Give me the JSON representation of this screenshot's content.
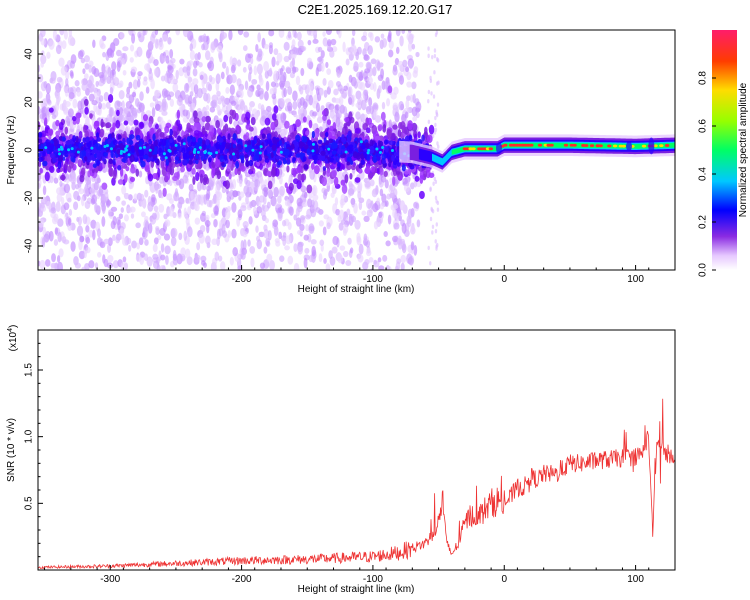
{
  "title": "C2E1.2025.169.12.20.G17",
  "chart_data": [
    {
      "type": "heatmap",
      "xlabel": "Height of straight line (km)",
      "ylabel": "Frequency (Hz)",
      "xlim": [
        -355,
        130
      ],
      "ylim": [
        -50,
        50
      ],
      "xticks": [
        "-300",
        "-200",
        "-100",
        "0",
        "100"
      ],
      "xtick_values": [
        -300,
        -200,
        -100,
        0,
        100
      ],
      "yticks": [
        "-40",
        "-20",
        "0",
        "20",
        "40"
      ],
      "ytick_values": [
        -40,
        -20,
        0,
        20,
        40
      ],
      "colorbar": {
        "label": "Normalized spectral amplitude",
        "range": [
          0,
          1
        ],
        "ticks": [
          "0.0",
          "0.2",
          "0.4",
          "0.6",
          "0.8"
        ],
        "tick_values": [
          0.0,
          0.2,
          0.4,
          0.6,
          0.8
        ]
      },
      "center_frequency_track": [
        {
          "h": -355,
          "f": 0
        },
        {
          "h": -100,
          "f": 0
        },
        {
          "h": -70,
          "f": -1
        },
        {
          "h": -55,
          "f": -3
        },
        {
          "h": -47,
          "f": -5
        },
        {
          "h": -40,
          "f": -1
        },
        {
          "h": -30,
          "f": 0.5
        },
        {
          "h": -5,
          "f": 0.5
        },
        {
          "h": 0,
          "f": 2
        },
        {
          "h": 50,
          "f": 2
        },
        {
          "h": 100,
          "f": 1.5
        },
        {
          "h": 130,
          "f": 2
        }
      ]
    },
    {
      "type": "line",
      "xlabel": "Height of straight line (km)",
      "ylabel": "SNR (10 * v/v)",
      "scale_note": "(x10",
      "scale_exp": "4",
      "xlim": [
        -355,
        130
      ],
      "ylim": [
        0,
        1.8
      ],
      "xticks": [
        "-300",
        "-200",
        "-100",
        "0",
        "100"
      ],
      "xtick_values": [
        -300,
        -200,
        -100,
        0,
        100
      ],
      "yticks": [
        "0.5",
        "1.0",
        "1.5"
      ],
      "ytick_values": [
        0.5,
        1.0,
        1.5
      ],
      "color": "#ee3333",
      "series": [
        {
          "x": [
            -355,
            -300,
            -250,
            -200,
            -150,
            -100,
            -80,
            -60,
            -50,
            -47,
            -44,
            -40,
            -35,
            -30,
            -25,
            -20,
            -15,
            -10,
            -5,
            0,
            5,
            10,
            15,
            20,
            25,
            30,
            40,
            50,
            60,
            70,
            80,
            90,
            100,
            105,
            110,
            113,
            116,
            120,
            125,
            130
          ],
          "y": [
            0.02,
            0.03,
            0.05,
            0.07,
            0.08,
            0.1,
            0.13,
            0.2,
            0.35,
            0.55,
            0.2,
            0.12,
            0.2,
            0.35,
            0.42,
            0.4,
            0.45,
            0.5,
            0.52,
            0.5,
            0.55,
            0.62,
            0.62,
            0.7,
            0.68,
            0.72,
            0.72,
            0.8,
            0.8,
            0.82,
            0.83,
            0.84,
            0.85,
            0.9,
            1.0,
            0.3,
            0.95,
            0.9,
            0.87,
            0.87
          ]
        }
      ]
    }
  ]
}
